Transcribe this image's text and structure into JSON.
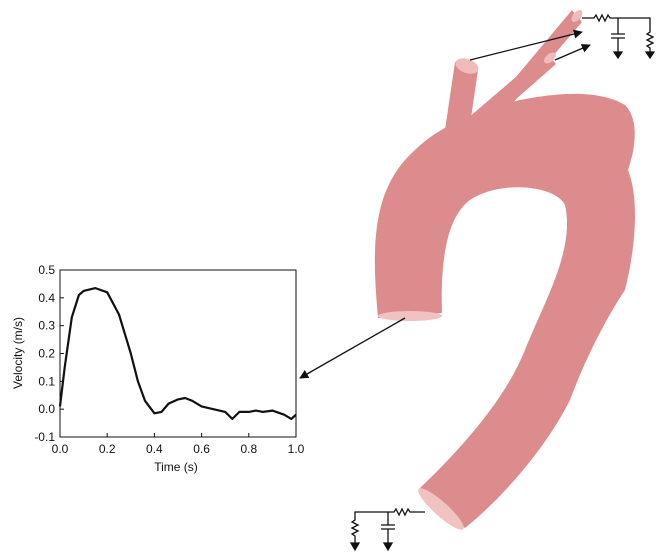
{
  "chart_data": {
    "type": "line",
    "x_label": "Time (s)",
    "y_label": "Velocity (m/s)",
    "x": [
      0,
      0.02,
      0.05,
      0.08,
      0.1,
      0.15,
      0.2,
      0.25,
      0.3,
      0.33,
      0.36,
      0.4,
      0.43,
      0.46,
      0.5,
      0.53,
      0.56,
      0.6,
      0.65,
      0.7,
      0.73,
      0.76,
      0.8,
      0.83,
      0.86,
      0.9,
      0.95,
      0.98,
      1.0
    ],
    "series": [
      {
        "color": "#111111",
        "values": [
          0.01,
          0.15,
          0.33,
          0.41,
          0.425,
          0.435,
          0.42,
          0.34,
          0.2,
          0.1,
          0.03,
          -0.015,
          -0.01,
          0.02,
          0.035,
          0.04,
          0.03,
          0.01,
          0.0,
          -0.01,
          -0.035,
          -0.01,
          -0.01,
          -0.005,
          -0.01,
          -0.005,
          -0.02,
          -0.035,
          -0.02
        ]
      }
    ],
    "xlim": [
      0,
      1.0
    ],
    "xticks": [
      {
        "value": 0,
        "label": "0.0"
      },
      0.2,
      0.4,
      0.6,
      0.8,
      {
        "value": 1.0,
        "label": "1.0"
      }
    ],
    "ylim": [
      -0.1,
      0.5
    ],
    "yticks": [
      -0.1,
      {
        "value": 0,
        "label": "0.0"
      },
      0.1,
      0.2,
      0.3,
      0.4,
      0.5
    ]
  }
}
